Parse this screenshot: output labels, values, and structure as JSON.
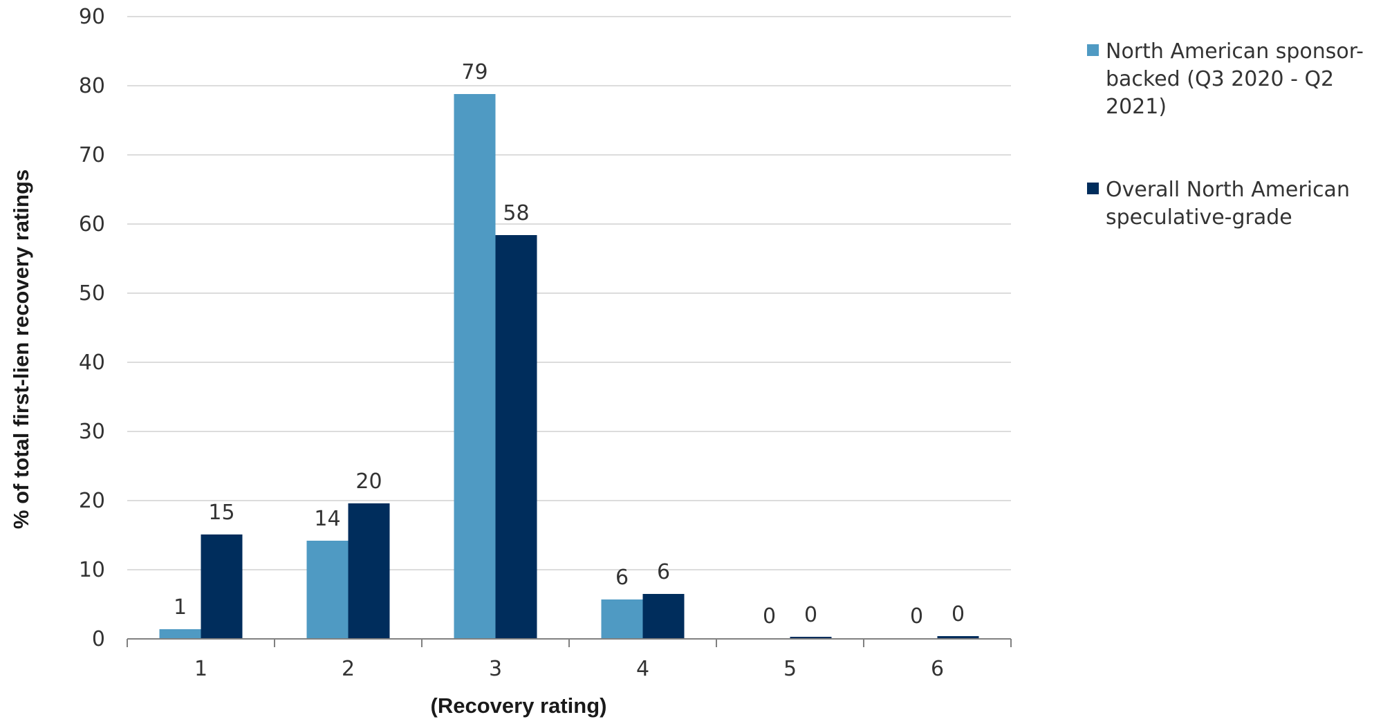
{
  "chart_data": {
    "type": "bar",
    "categories": [
      "1",
      "2",
      "3",
      "4",
      "5",
      "6"
    ],
    "series": [
      {
        "name": "North American sponsor-backed (Q3 2020 - Q2 2021)",
        "values": [
          1.4,
          14.2,
          78.8,
          5.7,
          0.1,
          0.1
        ],
        "labels": [
          "1",
          "14",
          "79",
          "6",
          "0",
          "0"
        ],
        "color": "#4f9ac3"
      },
      {
        "name": "Overall North American speculative-grade",
        "values": [
          15.1,
          19.6,
          58.4,
          6.5,
          0.3,
          0.4
        ],
        "labels": [
          "15",
          "20",
          "58",
          "6",
          "0",
          "0"
        ],
        "color": "#002d5c"
      }
    ],
    "title": "",
    "xlabel": "(Recovery rating)",
    "ylabel": "% of total first-lien recovery ratings",
    "ylim": [
      0,
      90
    ],
    "yticks": [
      "0",
      "10",
      "20",
      "30",
      "40",
      "50",
      "60",
      "70",
      "80",
      "90"
    ],
    "grid": true,
    "legend_position": "right",
    "legend_lines": [
      [
        "North American sponsor-",
        "backed (Q3 2020 - Q2",
        "2021)"
      ],
      [
        "Overall North American",
        "speculative-grade"
      ]
    ],
    "gridline_color": "#d0d0d0",
    "axis_color": "#808080"
  }
}
